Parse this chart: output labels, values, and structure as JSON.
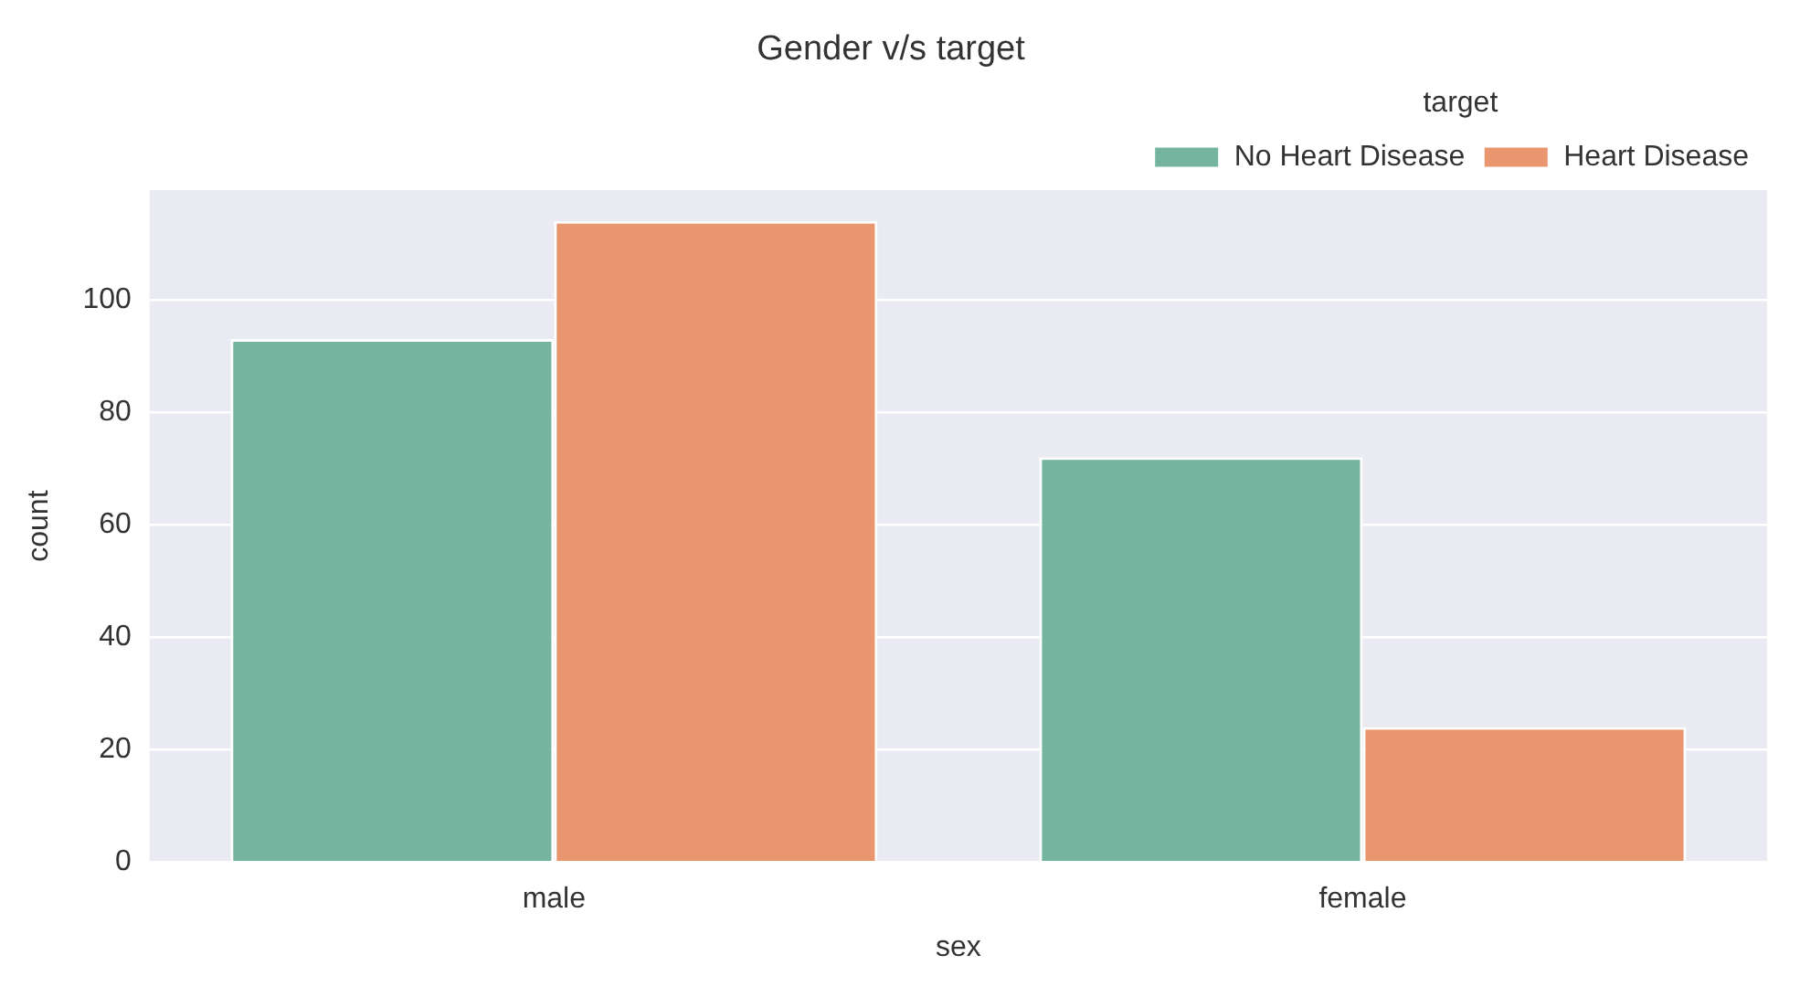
{
  "chart_data": {
    "type": "bar",
    "title": "Gender v/s target",
    "xlabel": "sex",
    "ylabel": "count",
    "categories": [
      "male",
      "female"
    ],
    "series": [
      {
        "name": "No Heart Disease",
        "color": "#75b5a0",
        "values": [
          93,
          72
        ]
      },
      {
        "name": "Heart Disease",
        "color": "#e9966f",
        "values": [
          114,
          24
        ]
      }
    ],
    "legend_title": "target",
    "legend": "top right",
    "ylim": [
      0,
      119.5
    ],
    "yticks": [
      0,
      20,
      40,
      60,
      80,
      100
    ],
    "grid": "y"
  }
}
